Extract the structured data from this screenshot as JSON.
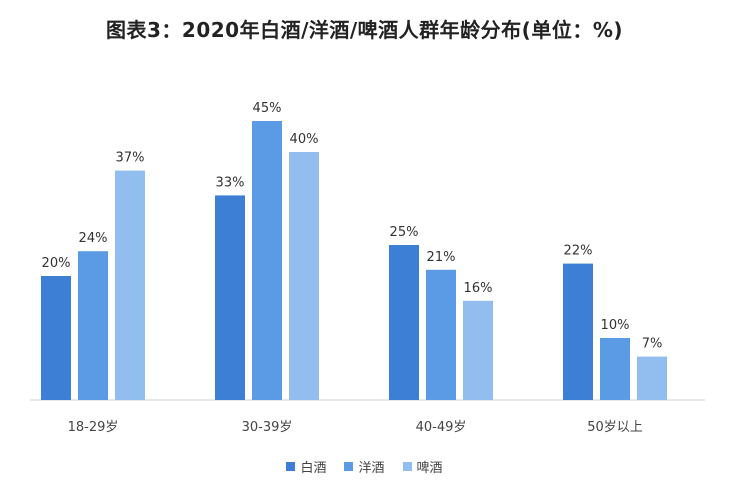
{
  "chart_data": {
    "type": "bar",
    "title": "图表3：2020年白酒/洋酒/啤酒人群年龄分布(单位：%)",
    "categories": [
      "18-29岁",
      "30-39岁",
      "40-49岁",
      "50岁以上"
    ],
    "series": [
      {
        "name": "白酒",
        "color": "#3e7fd6",
        "values": [
          20,
          33,
          25,
          22
        ]
      },
      {
        "name": "洋酒",
        "color": "#5b9ae4",
        "values": [
          24,
          45,
          21,
          10
        ]
      },
      {
        "name": "啤酒",
        "color": "#92bdef",
        "values": [
          37,
          40,
          16,
          7
        ]
      }
    ],
    "value_suffix": "%",
    "ylim": [
      0,
      50
    ],
    "xlabel": "",
    "ylabel": "",
    "grid": false,
    "legend_position": "bottom"
  }
}
